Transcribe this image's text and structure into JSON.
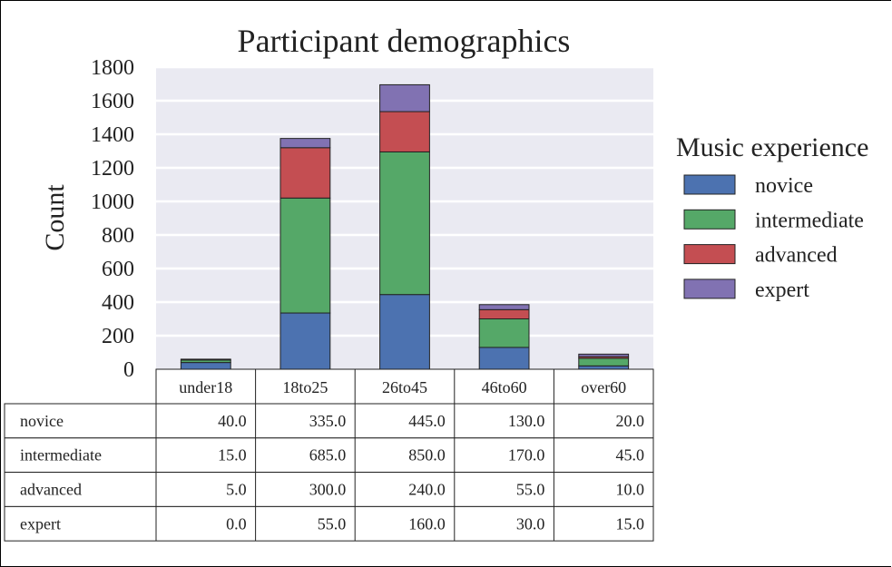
{
  "chart_data": {
    "type": "bar",
    "stacked": true,
    "title": "Participant demographics",
    "xlabel": "",
    "ylabel": "Count",
    "ylim": [
      0,
      1800
    ],
    "yticks": [
      "0",
      "200",
      "400",
      "600",
      "800",
      "1000",
      "1200",
      "1400",
      "1600",
      "1800"
    ],
    "grid": true,
    "legend": {
      "title": "Music experience",
      "placement": "right"
    },
    "categories": [
      "under18",
      "18to25",
      "26to45",
      "46to60",
      "over60"
    ],
    "series": [
      {
        "name": "novice",
        "color": "#4c72b0",
        "values": [
          40,
          335,
          445,
          130,
          20
        ],
        "labels": [
          "40.0",
          "335.0",
          "445.0",
          "130.0",
          "20.0"
        ]
      },
      {
        "name": "intermediate",
        "color": "#55a868",
        "values": [
          15,
          685,
          850,
          170,
          45
        ],
        "labels": [
          "15.0",
          "685.0",
          "850.0",
          "170.0",
          "45.0"
        ]
      },
      {
        "name": "advanced",
        "color": "#c44e52",
        "values": [
          5,
          300,
          240,
          55,
          10
        ],
        "labels": [
          "5.0",
          "300.0",
          "240.0",
          "55.0",
          "10.0"
        ]
      },
      {
        "name": "expert",
        "color": "#8172b2",
        "values": [
          0,
          55,
          160,
          30,
          15
        ],
        "labels": [
          "0.0",
          "55.0",
          "160.0",
          "30.0",
          "15.0"
        ]
      }
    ],
    "plot_background": "#eaeaf2",
    "grid_color": "#ffffff"
  }
}
